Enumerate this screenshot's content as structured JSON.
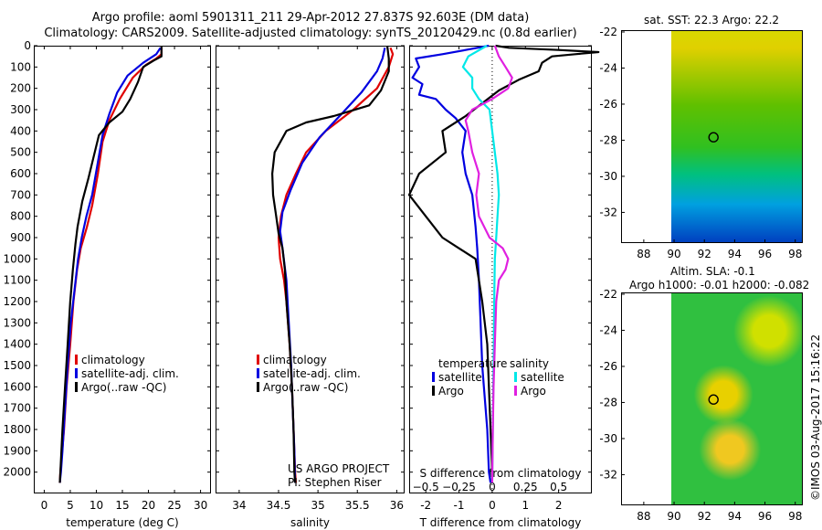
{
  "header": {
    "line1": "Argo profile: aoml 5901311_211 29-Apr-2012 27.837S 92.603E (DM data)",
    "line2": "Climatology: CARS2009. Satellite-adjusted climatology: synTS_20120429.nc (0.8d earlier)"
  },
  "colors": {
    "climatology": "#e00000",
    "satellite": "#0000e0",
    "argo": "#000000",
    "satellite_s": "#00e8e8",
    "argo_s": "#e020e0"
  },
  "chart_data": [
    {
      "type": "line",
      "xlabel": "temperature (deg C)",
      "ylabel": "",
      "xlim": [
        -2,
        32
      ],
      "ylim": [
        2100,
        0
      ],
      "xticks": [
        0,
        5,
        10,
        15,
        20,
        25,
        30
      ],
      "yticks": [
        0,
        100,
        200,
        300,
        400,
        500,
        600,
        700,
        800,
        900,
        1000,
        1100,
        1200,
        1300,
        1400,
        1500,
        1600,
        1700,
        1800,
        1900,
        2000
      ],
      "legend": [
        "climatology",
        "satellite-adj. clim.",
        "Argo(..raw -QC)"
      ],
      "series": [
        {
          "name": "climatology",
          "color": "#e00000",
          "points": [
            [
              22.5,
              10
            ],
            [
              22.5,
              40
            ],
            [
              21.5,
              60
            ],
            [
              19.5,
              90
            ],
            [
              17,
              150
            ],
            [
              14.5,
              250
            ],
            [
              12.5,
              350
            ],
            [
              11.2,
              450
            ],
            [
              10.3,
              600
            ],
            [
              9.2,
              750
            ],
            [
              8.2,
              850
            ],
            [
              7,
              950
            ],
            [
              6.3,
              1050
            ],
            [
              5.6,
              1200
            ],
            [
              5,
              1400
            ],
            [
              4.3,
              1600
            ],
            [
              3.8,
              1800
            ],
            [
              3.1,
              2000
            ],
            [
              3,
              2050
            ]
          ]
        },
        {
          "name": "satellite-adj. clim.",
          "color": "#0000e0",
          "points": [
            [
              22.3,
              10
            ],
            [
              21.5,
              40
            ],
            [
              19,
              80
            ],
            [
              16,
              140
            ],
            [
              14,
              220
            ],
            [
              12.5,
              320
            ],
            [
              11.2,
              420
            ],
            [
              10.2,
              560
            ],
            [
              9.2,
              700
            ],
            [
              8.1,
              800
            ],
            [
              7.2,
              900
            ],
            [
              6.5,
              1000
            ],
            [
              5.8,
              1150
            ],
            [
              5.1,
              1300
            ],
            [
              4.5,
              1500
            ],
            [
              4,
              1700
            ],
            [
              3.5,
              1900
            ],
            [
              3.2,
              2000
            ],
            [
              3,
              2050
            ]
          ]
        },
        {
          "name": "Argo(..raw -QC)",
          "color": "#000000",
          "points": [
            [
              22.5,
              0
            ],
            [
              22.5,
              50
            ],
            [
              21,
              70
            ],
            [
              19,
              100
            ],
            [
              18,
              170
            ],
            [
              16.5,
              250
            ],
            [
              15,
              310
            ],
            [
              12.5,
              360
            ],
            [
              10.5,
              420
            ],
            [
              9.5,
              520
            ],
            [
              8.5,
              620
            ],
            [
              7.3,
              730
            ],
            [
              6.4,
              850
            ],
            [
              6,
              930
            ],
            [
              5.5,
              1050
            ],
            [
              5,
              1200
            ],
            [
              4.5,
              1400
            ],
            [
              4,
              1600
            ],
            [
              3.5,
              1800
            ],
            [
              3.1,
              2000
            ],
            [
              3,
              2050
            ]
          ]
        }
      ]
    },
    {
      "type": "line",
      "xlabel": "salinity",
      "ylabel": "",
      "xlim": [
        33.7,
        36.1
      ],
      "ylim": [
        2100,
        0
      ],
      "xticks": [
        34,
        34.5,
        35,
        35.5,
        36
      ],
      "legend": [
        "climatology",
        "satellite-adj. clim.",
        "Argo(..raw -QC)"
      ],
      "annotations": [
        "US ARGO PROJECT",
        "PI: Stephen Riser"
      ],
      "series": [
        {
          "name": "climatology",
          "color": "#e00000",
          "points": [
            [
              35.92,
              10
            ],
            [
              35.95,
              40
            ],
            [
              35.9,
              100
            ],
            [
              35.75,
              200
            ],
            [
              35.45,
              300
            ],
            [
              35.1,
              400
            ],
            [
              34.85,
              500
            ],
            [
              34.72,
              600
            ],
            [
              34.6,
              700
            ],
            [
              34.53,
              800
            ],
            [
              34.5,
              900
            ],
            [
              34.52,
              1000
            ],
            [
              34.57,
              1100
            ],
            [
              34.6,
              1200
            ],
            [
              34.64,
              1400
            ],
            [
              34.67,
              1600
            ],
            [
              34.69,
              1800
            ],
            [
              34.71,
              2000
            ],
            [
              34.72,
              2050
            ]
          ]
        },
        {
          "name": "satellite-adj. clim.",
          "color": "#0000e0",
          "points": [
            [
              35.85,
              10
            ],
            [
              35.82,
              60
            ],
            [
              35.75,
              120
            ],
            [
              35.55,
              220
            ],
            [
              35.3,
              320
            ],
            [
              35.02,
              430
            ],
            [
              34.8,
              550
            ],
            [
              34.65,
              680
            ],
            [
              34.55,
              780
            ],
            [
              34.52,
              870
            ],
            [
              34.55,
              950
            ],
            [
              34.6,
              1100
            ],
            [
              34.63,
              1300
            ],
            [
              34.66,
              1500
            ],
            [
              34.68,
              1700
            ],
            [
              34.7,
              1900
            ],
            [
              34.71,
              2050
            ]
          ]
        },
        {
          "name": "Argo(..raw -QC)",
          "color": "#000000",
          "points": [
            [
              35.88,
              0
            ],
            [
              35.9,
              60
            ],
            [
              35.9,
              120
            ],
            [
              35.8,
              210
            ],
            [
              35.65,
              280
            ],
            [
              35.2,
              330
            ],
            [
              34.85,
              360
            ],
            [
              34.6,
              400
            ],
            [
              34.45,
              500
            ],
            [
              34.42,
              600
            ],
            [
              34.43,
              700
            ],
            [
              34.47,
              800
            ],
            [
              34.5,
              880
            ],
            [
              34.55,
              950
            ],
            [
              34.58,
              1050
            ],
            [
              34.6,
              1200
            ],
            [
              34.64,
              1400
            ],
            [
              34.67,
              1600
            ],
            [
              34.69,
              1800
            ],
            [
              34.7,
              2000
            ],
            [
              34.71,
              2050
            ]
          ]
        }
      ]
    },
    {
      "type": "line",
      "xlabel": "T difference from climatology",
      "ylabel": "",
      "x2label": "S difference from climatology",
      "xlim": [
        -2.5,
        3
      ],
      "ylim": [
        2100,
        0
      ],
      "xticks": [
        -2,
        -1,
        0,
        1,
        2
      ],
      "x2lim": [
        -0.625,
        0.75
      ],
      "x2ticks": [
        -0.5,
        -0.25,
        0,
        0.25,
        0.5
      ],
      "x2ticklabels": [
        "−0.5",
        "−0.25",
        "0",
        "0.25",
        "0.5"
      ],
      "legend_groups": [
        {
          "title": "temperature",
          "items": [
            "satellite",
            "Argo"
          ]
        },
        {
          "title": "salinity",
          "items": [
            "satellite",
            "Argo"
          ]
        }
      ],
      "series": [
        {
          "name": "satellite",
          "group": "temperature",
          "color": "#0000e0",
          "points": [
            [
              -0.1,
              0
            ],
            [
              -0.8,
              20
            ],
            [
              -1.5,
              40
            ],
            [
              -2.3,
              60
            ],
            [
              -2.2,
              100
            ],
            [
              -2.4,
              150
            ],
            [
              -2.1,
              180
            ],
            [
              -2.2,
              230
            ],
            [
              -1.7,
              250
            ],
            [
              -1.4,
              300
            ],
            [
              -1.1,
              340
            ],
            [
              -0.8,
              400
            ],
            [
              -0.9,
              500
            ],
            [
              -0.8,
              600
            ],
            [
              -0.6,
              700
            ],
            [
              -0.5,
              850
            ],
            [
              -0.45,
              950
            ],
            [
              -0.4,
              1100
            ],
            [
              -0.35,
              1300
            ],
            [
              -0.3,
              1500
            ],
            [
              -0.25,
              1600
            ],
            [
              -0.15,
              1800
            ],
            [
              -0.1,
              2000
            ],
            [
              -0.05,
              2050
            ]
          ]
        },
        {
          "name": "Argo",
          "group": "temperature",
          "color": "#000000",
          "points": [
            [
              0.1,
              0
            ],
            [
              0.5,
              10
            ],
            [
              2,
              20
            ],
            [
              3.2,
              30
            ],
            [
              2.5,
              40
            ],
            [
              1.8,
              50
            ],
            [
              1.5,
              80
            ],
            [
              1.4,
              120
            ],
            [
              0.8,
              160
            ],
            [
              0.2,
              210
            ],
            [
              -0.3,
              270
            ],
            [
              -0.8,
              330
            ],
            [
              -1.5,
              400
            ],
            [
              -1.4,
              500
            ],
            [
              -2.2,
              600
            ],
            [
              -2.5,
              700
            ],
            [
              -2,
              800
            ],
            [
              -1.5,
              900
            ],
            [
              -1,
              950
            ],
            [
              -0.5,
              1000
            ],
            [
              -0.3,
              1200
            ],
            [
              -0.15,
              1400
            ],
            [
              -0.1,
              1600
            ],
            [
              -0.05,
              1800
            ],
            [
              0,
              2000
            ],
            [
              0,
              2050
            ]
          ]
        },
        {
          "name": "satellite",
          "group": "salinity",
          "color": "#00e8e8",
          "points": [
            [
              -0.04,
              0
            ],
            [
              -0.18,
              50
            ],
            [
              -0.22,
              100
            ],
            [
              -0.15,
              150
            ],
            [
              -0.15,
              200
            ],
            [
              -0.1,
              250
            ],
            [
              -0.02,
              300
            ],
            [
              0,
              400
            ],
            [
              0.02,
              500
            ],
            [
              0.04,
              600
            ],
            [
              0.05,
              700
            ],
            [
              0.04,
              800
            ],
            [
              0.03,
              900
            ],
            [
              0.02,
              1000
            ],
            [
              0.015,
              1200
            ],
            [
              0.01,
              1500
            ],
            [
              0.005,
              1800
            ],
            [
              0,
              2050
            ]
          ]
        },
        {
          "name": "Argo",
          "group": "salinity",
          "color": "#e020e0",
          "points": [
            [
              0.02,
              0
            ],
            [
              0.05,
              50
            ],
            [
              0.1,
              100
            ],
            [
              0.15,
              150
            ],
            [
              0.12,
              200
            ],
            [
              0,
              250
            ],
            [
              -0.15,
              300
            ],
            [
              -0.2,
              350
            ],
            [
              -0.18,
              400
            ],
            [
              -0.15,
              500
            ],
            [
              -0.1,
              600
            ],
            [
              -0.12,
              700
            ],
            [
              -0.1,
              800
            ],
            [
              -0.02,
              900
            ],
            [
              0.08,
              950
            ],
            [
              0.12,
              1000
            ],
            [
              0.1,
              1050
            ],
            [
              0.05,
              1100
            ],
            [
              0.03,
              1200
            ],
            [
              0.02,
              1400
            ],
            [
              0.01,
              1600
            ],
            [
              0.005,
              1800
            ],
            [
              0,
              2050
            ]
          ]
        }
      ]
    }
  ],
  "maps": {
    "sst_title": "sat. SST: 22.3 Argo: 22.2",
    "sla_title1": "Altim. SLA: -0.1",
    "sla_title2": "Argo h1000: -0.01 h2000: -0.082",
    "xlim": [
      86.5,
      98.5
    ],
    "ylim": [
      -33.7,
      -21.9
    ],
    "xticks": [
      88,
      90,
      92,
      94,
      96,
      98
    ],
    "yticks": [
      -22,
      -24,
      -26,
      -28,
      -30,
      -32
    ],
    "data_lon_start": 90,
    "argo_lon": 92.603,
    "argo_lat": -27.837
  },
  "footer": {
    "stamp": "©IMOS 03-Aug-2017 15:16:22"
  }
}
